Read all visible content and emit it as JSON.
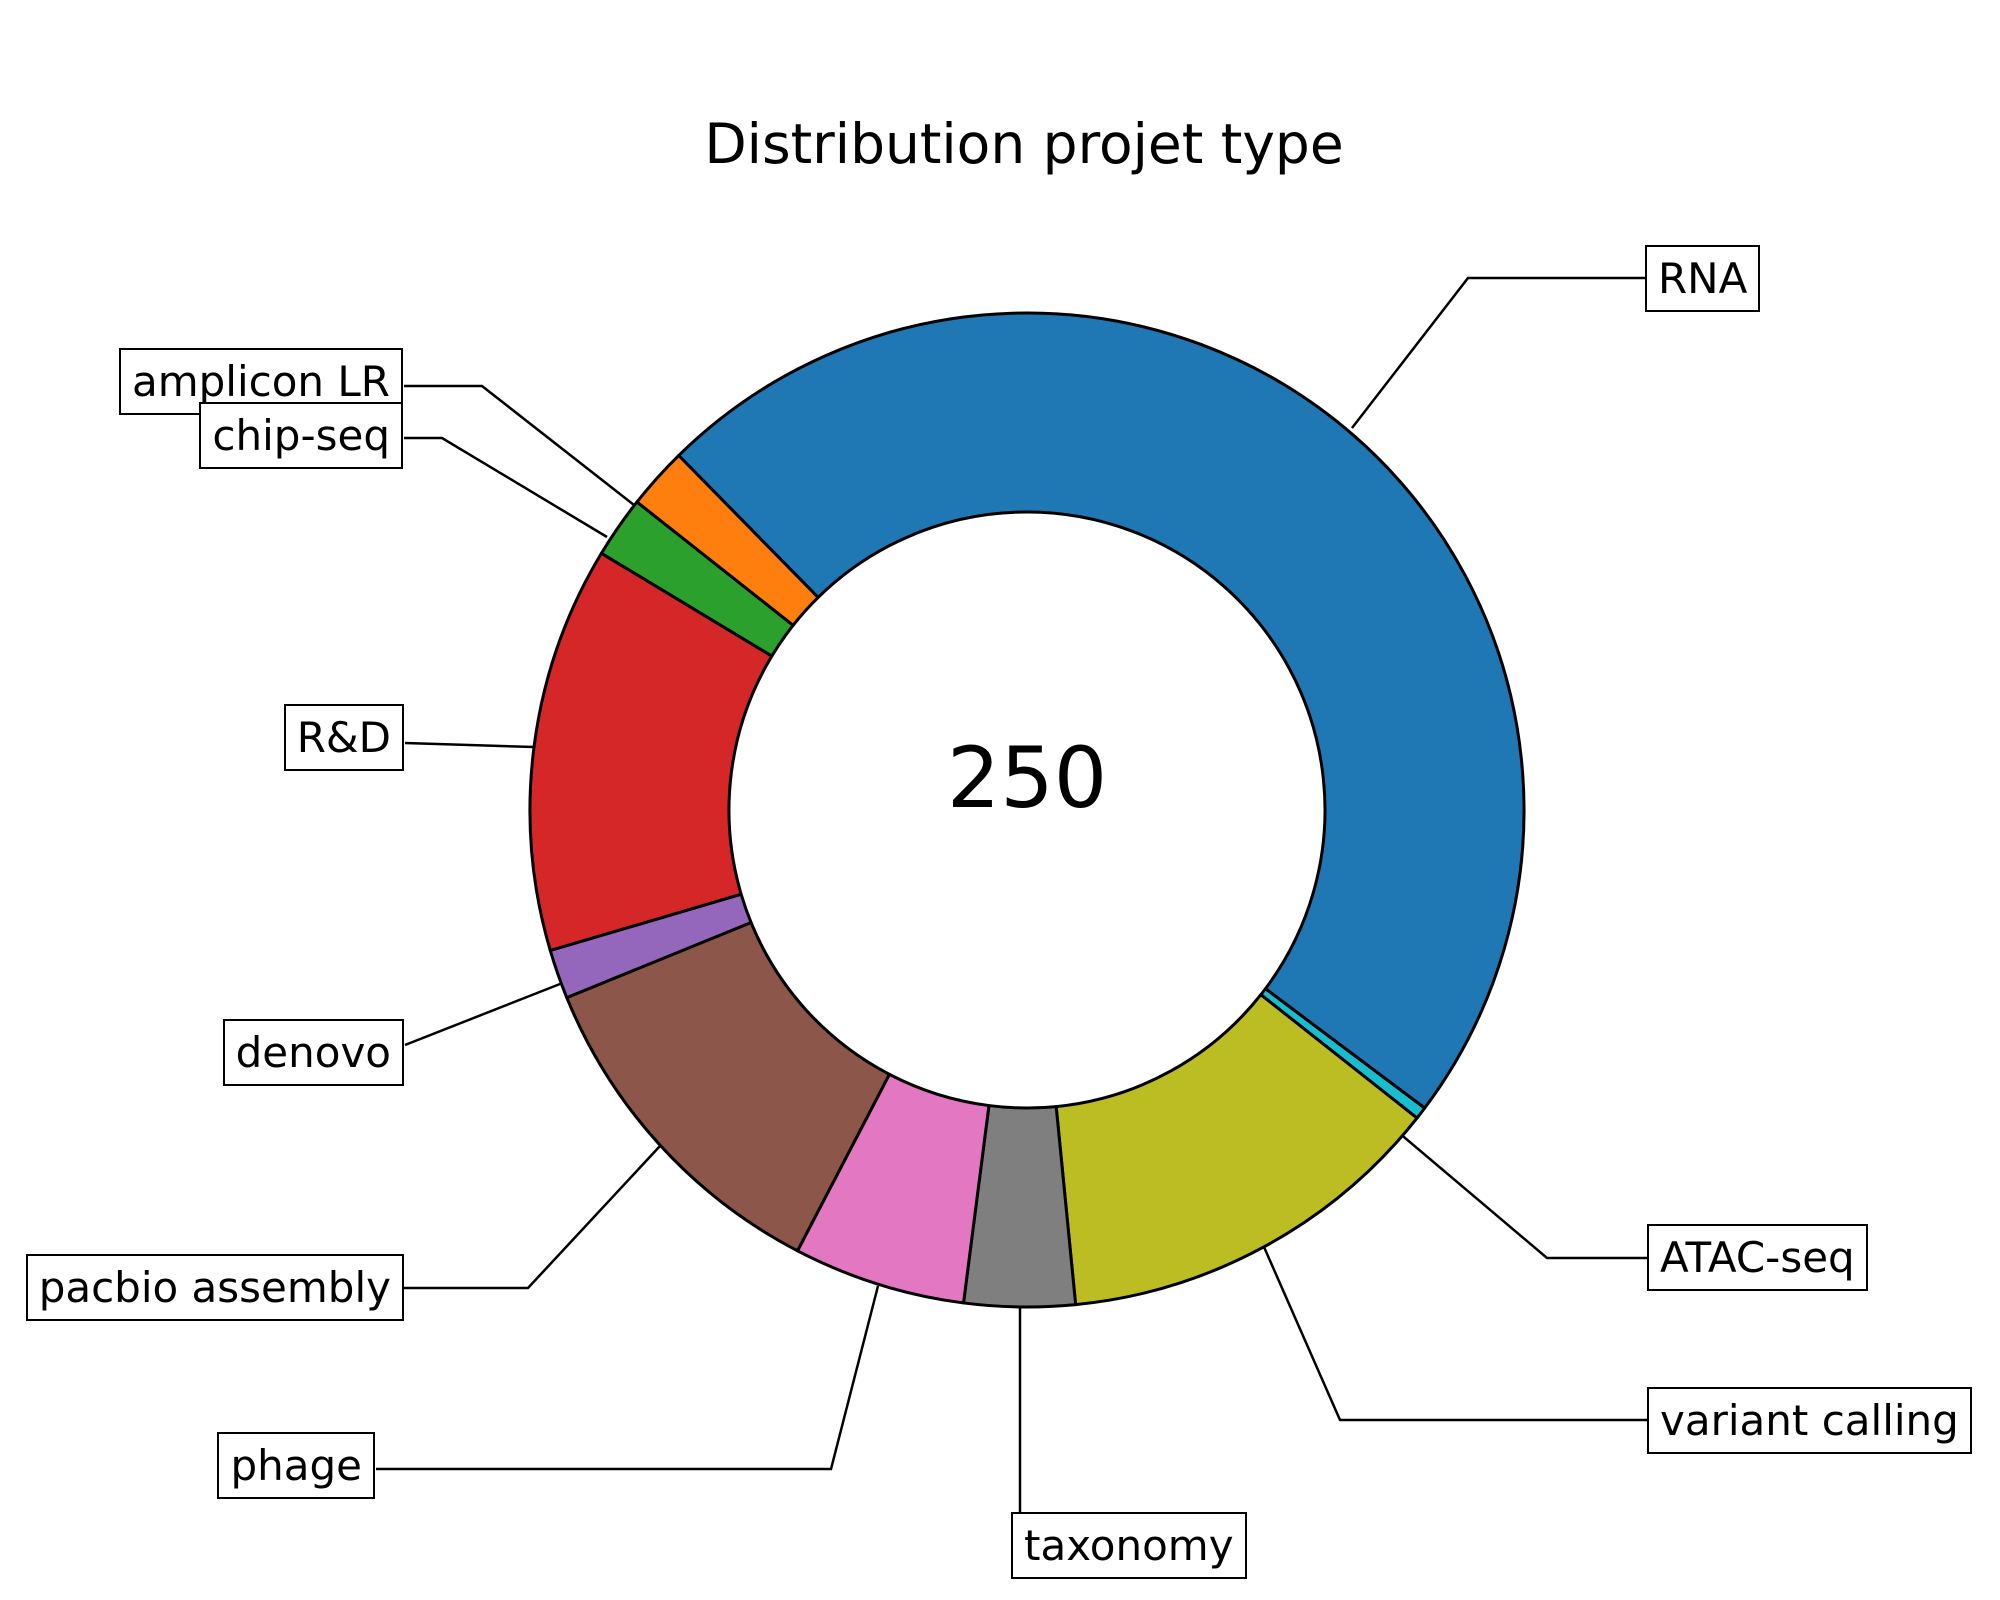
{
  "title": "Distribution projet type",
  "center_label": "250",
  "chart_data": {
    "type": "pie",
    "subtype": "donut",
    "title": "Distribution projet type",
    "total": 250,
    "center_text": "250",
    "hole_ratio": 0.6,
    "start_angle_deg": 134.5,
    "direction": "clockwise",
    "grid": false,
    "legend": "none (boxed callout labels with leader lines)",
    "slices": [
      {
        "label": "RNA",
        "value": 119,
        "color": "#1f77b4"
      },
      {
        "label": "ATAC-seq",
        "value": 1,
        "color": "#17becf"
      },
      {
        "label": "variant calling",
        "value": 32,
        "color": "#bcbd22"
      },
      {
        "label": "taxonomy",
        "value": 9,
        "color": "#7f7f7f"
      },
      {
        "label": "phage",
        "value": 14,
        "color": "#e377c2"
      },
      {
        "label": "pacbio assembly",
        "value": 28,
        "color": "#8c564b"
      },
      {
        "label": "denovo",
        "value": 4,
        "color": "#9467bd"
      },
      {
        "label": "R&D",
        "value": 33,
        "color": "#d62728"
      },
      {
        "label": "chip-seq",
        "value": 5,
        "color": "#2ca02c"
      },
      {
        "label": "amplicon LR",
        "value": 5,
        "color": "#ff7f0e"
      }
    ],
    "outline_color": "#000000"
  }
}
